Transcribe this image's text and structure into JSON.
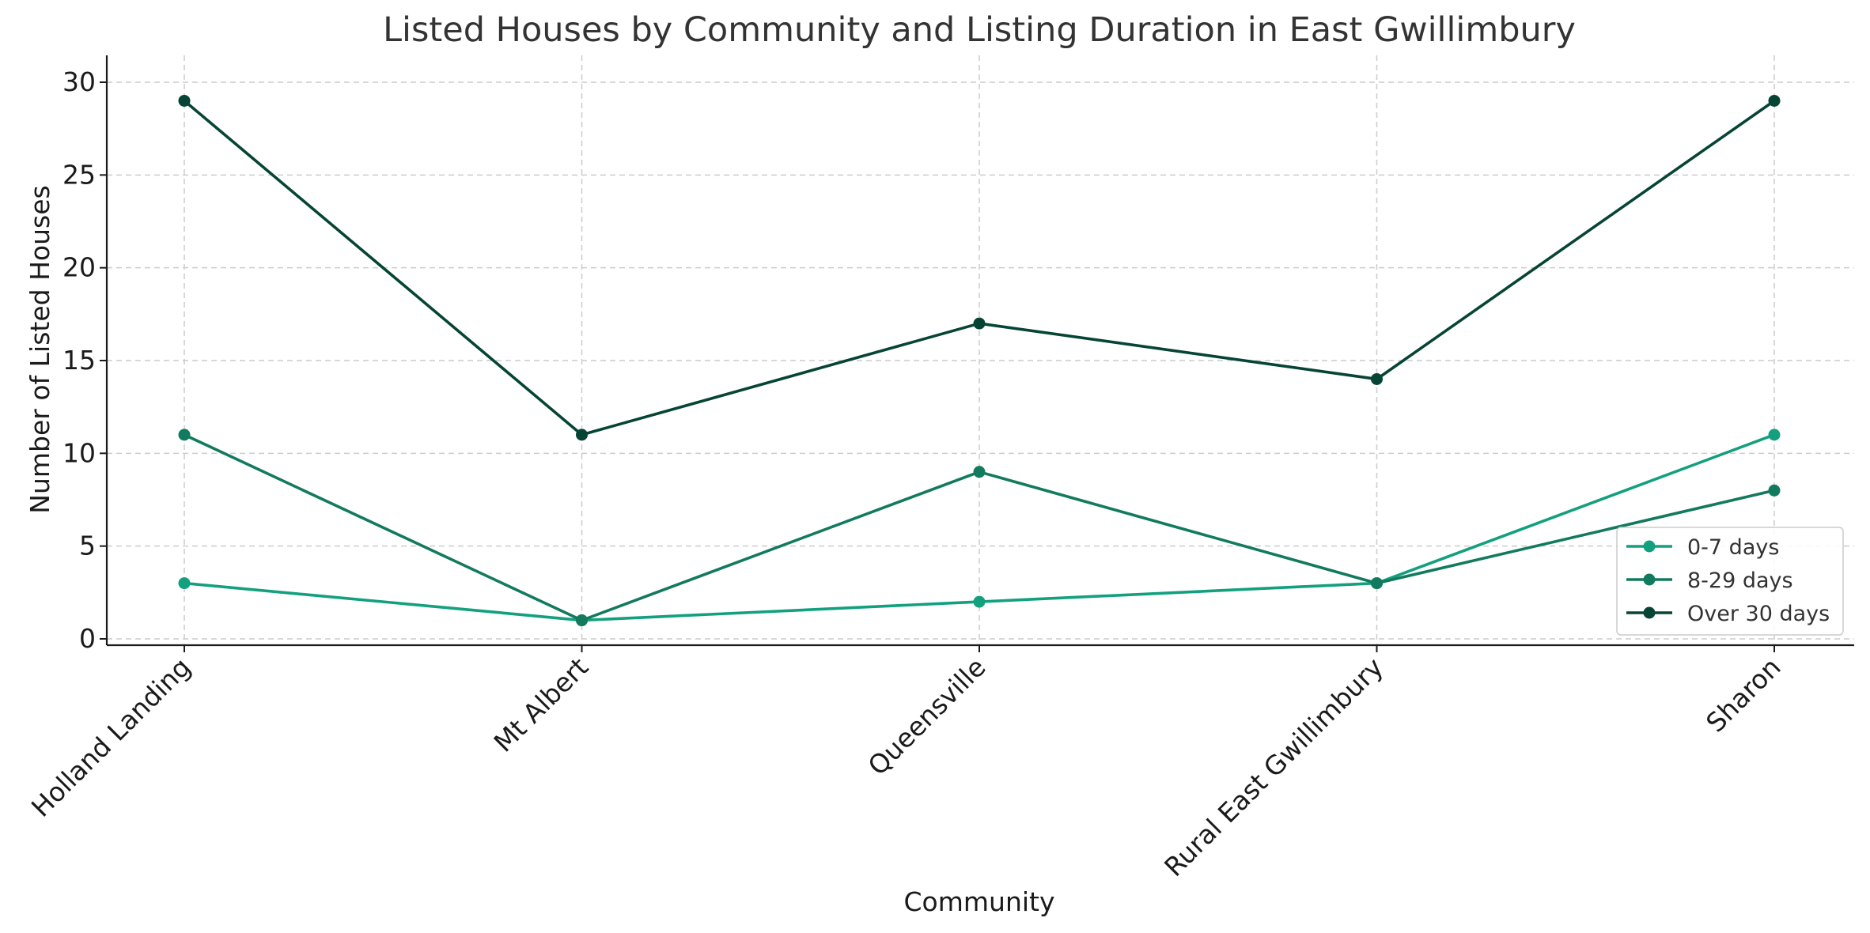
{
  "chart_data": {
    "type": "line",
    "title": "Listed Houses by Community and Listing Duration in East Gwillimbury",
    "xlabel": "Community",
    "ylabel": "Number of Listed Houses",
    "categories": [
      "Holland Landing",
      "Mt Albert",
      "Queensville",
      "Rural East Gwillimbury",
      "Sharon"
    ],
    "ylim": [
      0,
      30
    ],
    "yticks": [
      0,
      5,
      10,
      15,
      20,
      25,
      30
    ],
    "grid": true,
    "legend_position": "lower-right",
    "series": [
      {
        "name": "0-7 days",
        "values": [
          3,
          1,
          2,
          3,
          11
        ],
        "color": "#13a07e"
      },
      {
        "name": "8-29 days",
        "values": [
          11,
          1,
          9,
          3,
          8
        ],
        "color": "#127a5e"
      },
      {
        "name": "Over 30 days",
        "values": [
          29,
          11,
          17,
          14,
          29
        ],
        "color": "#064535"
      }
    ]
  }
}
